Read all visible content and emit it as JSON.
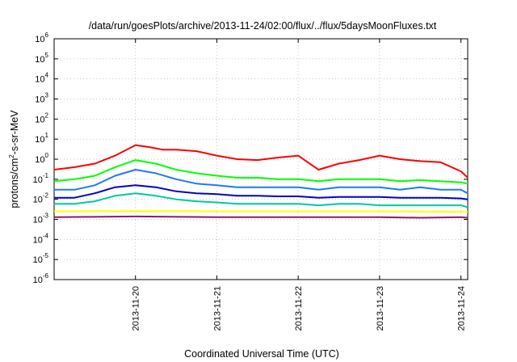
{
  "chart_data": {
    "type": "line",
    "title": "/data/run/goesPlots/archive/2013-11-24/02:00/flux/../flux/5daysMoonFluxes.txt",
    "xlabel": "Coordinated Universal Time (UTC)",
    "ylabel": "protons/cm²-s-sr-MeV",
    "ylabel_parts": {
      "pre": "protons/cm",
      "sup": "2",
      "post": "-s-sr-MeV"
    },
    "yscale": "log",
    "ylim": [
      1e-06,
      1000000.0
    ],
    "xlim": [
      "2013-11-19T00:00",
      "2013-11-24T02:00"
    ],
    "x_ticks": [
      "2013-11-20",
      "2013-11-21",
      "2013-11-22",
      "2013-11-23",
      "2013-11-24"
    ],
    "y_ticks": [
      {
        "base": "10",
        "exp": "-6",
        "value": 1e-06
      },
      {
        "base": "10",
        "exp": "-5",
        "value": 1e-05
      },
      {
        "base": "10",
        "exp": "-4",
        "value": 0.0001
      },
      {
        "base": "10",
        "exp": "-3",
        "value": 0.001
      },
      {
        "base": "10",
        "exp": "-2",
        "value": 0.01
      },
      {
        "base": "10",
        "exp": "-1",
        "value": 0.1
      },
      {
        "base": "10",
        "exp": "0",
        "value": 1
      },
      {
        "base": "10",
        "exp": "1",
        "value": 10
      },
      {
        "base": "10",
        "exp": "2",
        "value": 100
      },
      {
        "base": "10",
        "exp": "3",
        "value": 1000
      },
      {
        "base": "10",
        "exp": "4",
        "value": 10000
      },
      {
        "base": "10",
        "exp": "5",
        "value": 100000
      },
      {
        "base": "10",
        "exp": "6",
        "value": 1000000
      }
    ],
    "grid": true,
    "series": [
      {
        "color": "#ff0000",
        "x": [
          "2013-11-19T00:00",
          "2013-11-19T06:00",
          "2013-11-19T12:00",
          "2013-11-19T18:00",
          "2013-11-20T00:00",
          "2013-11-20T04:00",
          "2013-11-20T08:00",
          "2013-11-20T12:00",
          "2013-11-20T18:00",
          "2013-11-21T00:00",
          "2013-11-21T06:00",
          "2013-11-21T12:00",
          "2013-11-21T18:00",
          "2013-11-22T00:00",
          "2013-11-22T06:00",
          "2013-11-22T12:00",
          "2013-11-22T18:00",
          "2013-11-23T00:00",
          "2013-11-23T06:00",
          "2013-11-23T12:00",
          "2013-11-23T18:00",
          "2013-11-24T00:00",
          "2013-11-24T02:00"
        ],
        "y": [
          0.3,
          0.4,
          0.6,
          1.5,
          5,
          4,
          3,
          3,
          2.5,
          1.5,
          1.0,
          0.9,
          1.2,
          1.5,
          0.3,
          0.6,
          0.9,
          1.5,
          1.0,
          0.8,
          0.7,
          0.25,
          0.12
        ]
      },
      {
        "color": "#00ff00",
        "x": [
          "2013-11-19T00:00",
          "2013-11-19T06:00",
          "2013-11-19T12:00",
          "2013-11-19T18:00",
          "2013-11-20T00:00",
          "2013-11-20T06:00",
          "2013-11-20T12:00",
          "2013-11-20T18:00",
          "2013-11-21T00:00",
          "2013-11-21T06:00",
          "2013-11-21T12:00",
          "2013-11-21T18:00",
          "2013-11-22T00:00",
          "2013-11-22T06:00",
          "2013-11-22T12:00",
          "2013-11-22T18:00",
          "2013-11-23T00:00",
          "2013-11-23T06:00",
          "2013-11-23T12:00",
          "2013-11-23T18:00",
          "2013-11-24T00:00",
          "2013-11-24T02:00"
        ],
        "y": [
          0.08,
          0.1,
          0.15,
          0.4,
          0.9,
          0.6,
          0.3,
          0.2,
          0.15,
          0.12,
          0.12,
          0.1,
          0.1,
          0.08,
          0.1,
          0.1,
          0.1,
          0.08,
          0.09,
          0.08,
          0.07,
          0.06
        ]
      },
      {
        "color": "#1e78ff",
        "x": [
          "2013-11-19T00:00",
          "2013-11-19T06:00",
          "2013-11-19T12:00",
          "2013-11-19T18:00",
          "2013-11-20T00:00",
          "2013-11-20T06:00",
          "2013-11-20T12:00",
          "2013-11-20T18:00",
          "2013-11-21T00:00",
          "2013-11-21T06:00",
          "2013-11-21T12:00",
          "2013-11-21T18:00",
          "2013-11-22T00:00",
          "2013-11-22T06:00",
          "2013-11-22T12:00",
          "2013-11-22T18:00",
          "2013-11-23T00:00",
          "2013-11-23T06:00",
          "2013-11-23T12:00",
          "2013-11-23T18:00",
          "2013-11-24T00:00",
          "2013-11-24T02:00"
        ],
        "y": [
          0.03,
          0.03,
          0.05,
          0.15,
          0.3,
          0.2,
          0.1,
          0.06,
          0.05,
          0.04,
          0.04,
          0.04,
          0.04,
          0.03,
          0.04,
          0.04,
          0.04,
          0.03,
          0.04,
          0.03,
          0.03,
          0.02
        ]
      },
      {
        "color": "#0000cc",
        "x": [
          "2013-11-19T00:00",
          "2013-11-19T06:00",
          "2013-11-19T12:00",
          "2013-11-19T18:00",
          "2013-11-20T00:00",
          "2013-11-20T06:00",
          "2013-11-20T12:00",
          "2013-11-20T18:00",
          "2013-11-21T00:00",
          "2013-11-21T06:00",
          "2013-11-21T12:00",
          "2013-11-21T18:00",
          "2013-11-22T00:00",
          "2013-11-22T06:00",
          "2013-11-22T12:00",
          "2013-11-22T18:00",
          "2013-11-23T00:00",
          "2013-11-23T06:00",
          "2013-11-23T12:00",
          "2013-11-23T18:00",
          "2013-11-24T00:00",
          "2013-11-24T02:00"
        ],
        "y": [
          0.012,
          0.012,
          0.02,
          0.04,
          0.05,
          0.04,
          0.025,
          0.02,
          0.018,
          0.015,
          0.015,
          0.014,
          0.014,
          0.012,
          0.013,
          0.013,
          0.013,
          0.012,
          0.012,
          0.012,
          0.011,
          0.01
        ]
      },
      {
        "color": "#00c8a0",
        "x": [
          "2013-11-19T00:00",
          "2013-11-19T06:00",
          "2013-11-19T12:00",
          "2013-11-19T18:00",
          "2013-11-20T00:00",
          "2013-11-20T06:00",
          "2013-11-20T12:00",
          "2013-11-20T18:00",
          "2013-11-21T00:00",
          "2013-11-21T06:00",
          "2013-11-21T12:00",
          "2013-11-21T18:00",
          "2013-11-22T00:00",
          "2013-11-22T06:00",
          "2013-11-22T12:00",
          "2013-11-22T18:00",
          "2013-11-23T00:00",
          "2013-11-23T06:00",
          "2013-11-23T12:00",
          "2013-11-23T18:00",
          "2013-11-24T00:00",
          "2013-11-24T02:00"
        ],
        "y": [
          0.006,
          0.006,
          0.008,
          0.015,
          0.02,
          0.015,
          0.01,
          0.008,
          0.007,
          0.006,
          0.006,
          0.006,
          0.006,
          0.005,
          0.006,
          0.006,
          0.005,
          0.005,
          0.005,
          0.005,
          0.005,
          0.004
        ]
      },
      {
        "color": "#ffff00",
        "x": [
          "2013-11-19T00:00",
          "2013-11-20T00:00",
          "2013-11-21T00:00",
          "2013-11-22T00:00",
          "2013-11-23T00:00",
          "2013-11-24T00:00",
          "2013-11-24T02:00"
        ],
        "y": [
          0.0025,
          0.0026,
          0.0025,
          0.0025,
          0.0025,
          0.0024,
          0.0024
        ]
      },
      {
        "color": "#8b1a6e",
        "x": [
          "2013-11-19T00:00",
          "2013-11-20T00:00",
          "2013-11-21T00:00",
          "2013-11-22T00:00",
          "2013-11-23T00:00",
          "2013-11-23T12:00",
          "2013-11-24T00:00",
          "2013-11-24T02:00"
        ],
        "y": [
          0.0013,
          0.0014,
          0.0013,
          0.0013,
          0.0013,
          0.0012,
          0.0013,
          0.0012
        ]
      }
    ]
  }
}
